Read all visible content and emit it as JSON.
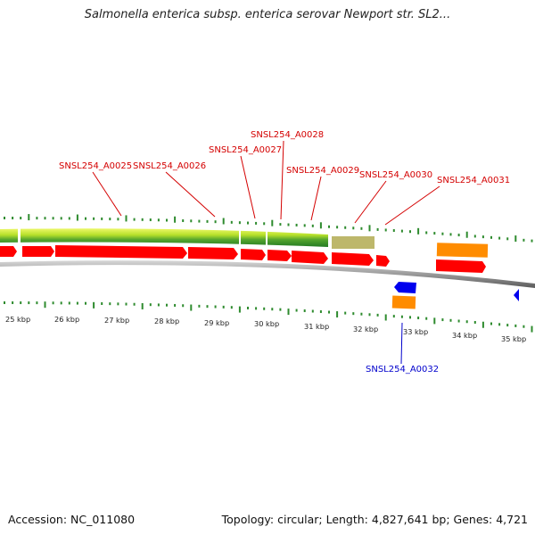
{
  "title": "Salmonella enterica subsp. enterica serovar Newport str. SL2...",
  "accession_text": "Accession: NC_011080",
  "summary_text": "Topology: circular; Length: 4,827,641 bp; Genes: 4,721",
  "colors": {
    "cds_forward": "#ff0000",
    "cds_reverse": "#0000ff",
    "rna_orange": "#ff8c00",
    "khaki_feature": "#bdb76b",
    "backbone": "#8a8a8a",
    "gc_green": "#2e8b2e",
    "gc_lightgreen": "#ccee22",
    "label_red": "#d40000",
    "label_blue": "#0000cc"
  },
  "scale_labels": [
    "25 kbp",
    "26 kbp",
    "27 kbp",
    "28 kbp",
    "29 kbp",
    "30 kbp",
    "31 kbp",
    "32 kbp",
    "33 kbp",
    "34 kbp",
    "35 kbp"
  ],
  "gene_labels": [
    {
      "text": "SNSL254_A0025",
      "strand": "forward"
    },
    {
      "text": "SNSL254_A0026",
      "strand": "forward"
    },
    {
      "text": "SNSL254_A0027",
      "strand": "forward"
    },
    {
      "text": "SNSL254_A0028",
      "strand": "forward"
    },
    {
      "text": "SNSL254_A0029",
      "strand": "forward"
    },
    {
      "text": "SNSL254_A0030",
      "strand": "forward"
    },
    {
      "text": "SNSL254_A0031",
      "strand": "forward"
    },
    {
      "text": "SNSL254_A0032",
      "strand": "reverse"
    }
  ]
}
